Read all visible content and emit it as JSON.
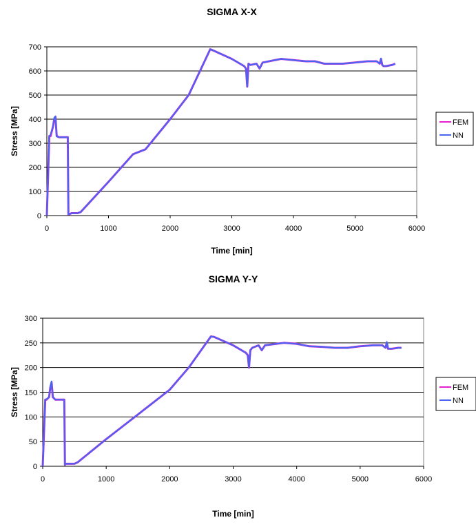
{
  "chart_data": [
    {
      "type": "line",
      "title": "SIGMA X-X",
      "xlabel": "Time [min]",
      "ylabel": "Stress [MPa]",
      "xlim": [
        0,
        6000
      ],
      "ylim": [
        0,
        700
      ],
      "xticks": [
        0,
        1000,
        2000,
        3000,
        4000,
        5000,
        6000
      ],
      "yticks": [
        0,
        100,
        200,
        300,
        400,
        500,
        600,
        700
      ],
      "grid": "horizontal",
      "legend_position": "right",
      "series": [
        {
          "name": "FEM",
          "color": "#e61ecf",
          "x": [
            0,
            40,
            60,
            100,
            120,
            140,
            160,
            200,
            340,
            350,
            360,
            400,
            500,
            550,
            1000,
            1400,
            1500,
            1600,
            2000,
            2300,
            2650,
            2700,
            3000,
            3200,
            3230,
            3250,
            3270,
            3300,
            3400,
            3450,
            3500,
            3800,
            4000,
            4200,
            4350,
            4500,
            4800,
            5000,
            5200,
            5350,
            5400,
            5420,
            5440,
            5460,
            5500,
            5600,
            5650
          ],
          "y": [
            0,
            330,
            330,
            370,
            400,
            410,
            330,
            325,
            325,
            5,
            5,
            10,
            10,
            15,
            140,
            255,
            265,
            275,
            400,
            500,
            690,
            685,
            650,
            620,
            610,
            535,
            630,
            625,
            630,
            610,
            635,
            650,
            645,
            640,
            640,
            630,
            630,
            635,
            640,
            640,
            630,
            650,
            625,
            620,
            620,
            625,
            630
          ]
        },
        {
          "name": "NN",
          "color": "#4a63f0",
          "x": [
            0,
            40,
            60,
            100,
            120,
            140,
            160,
            200,
            340,
            350,
            360,
            400,
            500,
            550,
            1000,
            1400,
            1500,
            1600,
            2000,
            2300,
            2650,
            2700,
            3000,
            3200,
            3230,
            3250,
            3270,
            3300,
            3400,
            3450,
            3500,
            3800,
            4000,
            4200,
            4350,
            4500,
            4800,
            5000,
            5200,
            5350,
            5400,
            5420,
            5440,
            5460,
            5500,
            5600,
            5650
          ],
          "y": [
            0,
            330,
            335,
            370,
            405,
            412,
            328,
            325,
            325,
            5,
            5,
            10,
            10,
            15,
            140,
            255,
            265,
            275,
            400,
            500,
            690,
            685,
            650,
            620,
            610,
            535,
            630,
            625,
            630,
            610,
            635,
            650,
            645,
            640,
            640,
            630,
            630,
            635,
            640,
            640,
            630,
            652,
            625,
            620,
            620,
            625,
            630
          ]
        }
      ]
    },
    {
      "type": "line",
      "title": "SIGMA Y-Y",
      "xlabel": "Time [min]",
      "ylabel": "Stress [MPa]",
      "xlim": [
        0,
        6000
      ],
      "ylim": [
        0,
        300
      ],
      "xticks": [
        0,
        1000,
        2000,
        3000,
        4000,
        5000,
        6000
      ],
      "yticks": [
        0,
        50,
        100,
        150,
        200,
        250,
        300
      ],
      "grid": "horizontal",
      "legend_position": "right",
      "series": [
        {
          "name": "FEM",
          "color": "#e61ecf",
          "x": [
            0,
            40,
            60,
            100,
            120,
            140,
            160,
            200,
            340,
            350,
            360,
            400,
            500,
            550,
            1000,
            1500,
            1600,
            2000,
            2300,
            2650,
            2700,
            3000,
            3200,
            3230,
            3250,
            3270,
            3300,
            3400,
            3450,
            3500,
            3800,
            4000,
            4200,
            4400,
            4600,
            4800,
            5000,
            5200,
            5350,
            5400,
            5420,
            5440,
            5460,
            5500,
            5600,
            5650
          ],
          "y": [
            0,
            135,
            135,
            140,
            160,
            170,
            140,
            135,
            135,
            3,
            5,
            5,
            5,
            8,
            55,
            105,
            115,
            155,
            200,
            263,
            262,
            245,
            230,
            225,
            200,
            235,
            240,
            245,
            235,
            245,
            250,
            248,
            243,
            242,
            240,
            240,
            243,
            245,
            245,
            240,
            250,
            238,
            238,
            238,
            240,
            240
          ]
        },
        {
          "name": "NN",
          "color": "#4a63f0",
          "x": [
            0,
            40,
            60,
            100,
            120,
            140,
            160,
            200,
            340,
            350,
            360,
            400,
            500,
            550,
            1000,
            1500,
            1600,
            2000,
            2300,
            2650,
            2700,
            3000,
            3200,
            3230,
            3250,
            3270,
            3300,
            3400,
            3450,
            3500,
            3800,
            4000,
            4200,
            4400,
            4600,
            4800,
            5000,
            5200,
            5350,
            5400,
            5420,
            5440,
            5460,
            5500,
            5600,
            5650
          ],
          "y": [
            0,
            135,
            136,
            140,
            162,
            172,
            140,
            135,
            135,
            3,
            5,
            5,
            5,
            8,
            55,
            105,
            115,
            155,
            200,
            263,
            262,
            245,
            230,
            225,
            200,
            235,
            240,
            245,
            235,
            245,
            250,
            248,
            243,
            242,
            240,
            240,
            243,
            245,
            245,
            240,
            252,
            238,
            238,
            238,
            240,
            240
          ]
        }
      ]
    }
  ]
}
